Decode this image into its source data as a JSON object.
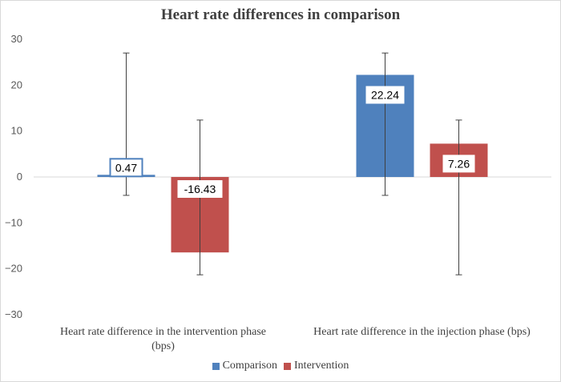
{
  "chart_data": {
    "type": "bar",
    "title": "Heart rate differences in comparison",
    "categories": [
      "Heart rate difference in the intervention phase (bps)",
      "Heart rate difference in the injection phase (bps)"
    ],
    "category_lines": [
      [
        "Heart rate difference in the intervention phase",
        "(bps)"
      ],
      [
        "Heart rate difference in the injection phase (bps)"
      ]
    ],
    "series": [
      {
        "name": "Comparison",
        "color": "#4f81bd",
        "values": [
          0.47,
          22.24
        ],
        "labels": [
          "0.47",
          "22.24"
        ],
        "error_high": [
          27,
          27
        ],
        "error_low": [
          -4,
          -4
        ]
      },
      {
        "name": "Intervention",
        "color": "#c0504d",
        "values": [
          -16.43,
          7.26
        ],
        "labels": [
          "-16.43",
          "7.26"
        ],
        "error_high": [
          12.4,
          12.4
        ],
        "error_low": [
          -21.3,
          -21.3
        ]
      }
    ],
    "ylim": [
      -30,
      30
    ],
    "yticks": [
      30,
      20,
      10,
      0,
      -10,
      -20,
      -30
    ],
    "xlabel": "",
    "ylabel": "",
    "grid": false,
    "legend_position": "bottom"
  }
}
